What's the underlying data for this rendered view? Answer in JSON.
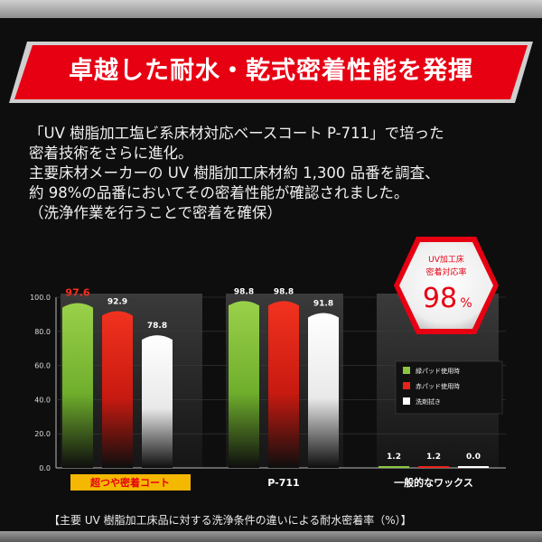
{
  "banner": {
    "title": "卓越した耐水・乾式密着性能を発揮"
  },
  "paragraph": {
    "lines": [
      "「UV 樹脂加工塩ビ系床材対応ベースコート P-711」で培った",
      "密着技術をさらに進化。",
      "主要床材メーカーの UV 樹脂加工床材約 1,300 品番を調査、",
      "約 98%の品番においてその密着性能が確認されました。",
      "（洗浄作業を行うことで密着を確保）"
    ]
  },
  "badge": {
    "line1": "UV加工床",
    "line2": "密着対応率",
    "value": "98",
    "unit": "%"
  },
  "footer": {
    "caption": "【主要 UV 樹脂加工床品に対する洗浄条件の違いによる耐水密着率（%）】"
  },
  "chart_data": {
    "type": "bar",
    "categories": [
      "超つや密着コート",
      "P-711",
      "一般的なワックス"
    ],
    "series": [
      {
        "name": "緑パッド使用時",
        "values": [
          97.6,
          98.8,
          1.2
        ],
        "labels": [
          "97.6",
          "98.8",
          "1.2"
        ]
      },
      {
        "name": "赤パッド使用時",
        "values": [
          92.9,
          98.8,
          1.2
        ],
        "labels": [
          "92.9",
          "98.8",
          "1.2"
        ]
      },
      {
        "name": "洗剤拭き",
        "values": [
          78.8,
          91.8,
          0.0
        ],
        "labels": [
          "78.8",
          "91.8",
          "0.0"
        ]
      }
    ],
    "yticks": [
      "100.0",
      "80.0",
      "60.0",
      "40.0",
      "20.0",
      "0.0"
    ],
    "ylim": [
      0,
      100
    ],
    "legend_position": "right",
    "colors": {
      "green": "#8cc63f",
      "red": "#e8231a",
      "white": "#ffffff",
      "highlight_label": "#f5b800",
      "highlight_value": "#ff2a1a"
    }
  }
}
